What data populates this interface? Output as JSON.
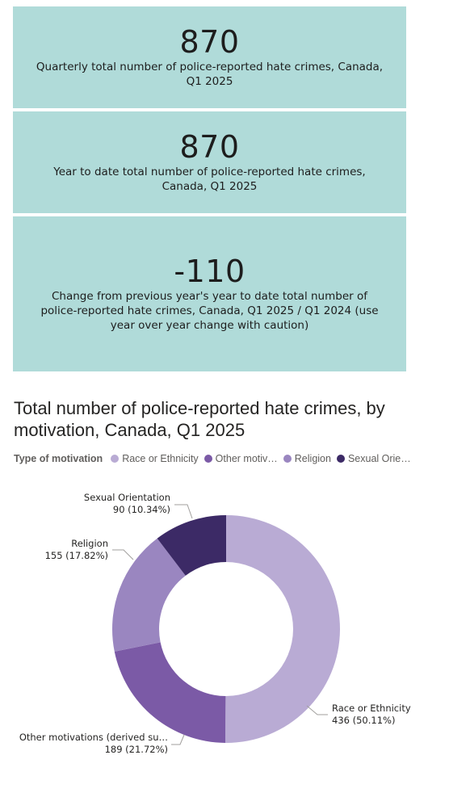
{
  "kpis": [
    {
      "value": "870",
      "label": "Quarterly total number of police-reported hate crimes, Canada, Q1 2025"
    },
    {
      "value": "870",
      "label": "Year to date total number of police-reported hate crimes, Canada, Q1 2025"
    },
    {
      "value": "-110",
      "label": "Change from previous year's year to date total number of police-reported hate crimes, Canada, Q1 2025 / Q1 2024 (use year over year change with caution)"
    }
  ],
  "legend": {
    "title": "Type of motivation",
    "items": [
      {
        "label": "Race or Ethnicity",
        "color": "#b9abd4"
      },
      {
        "label": "Other motiv…",
        "color": "#7b5aa6"
      },
      {
        "label": "Religion",
        "color": "#9a86c0"
      },
      {
        "label": "Sexual Orie…",
        "color": "#3c2a66"
      }
    ]
  },
  "chart_data": {
    "type": "pie",
    "title": "Total number of police-reported hate crimes, by motivation, Canada, Q1 2025",
    "donut": true,
    "categories": [
      "Race or Ethnicity",
      "Other motivations (derived su…",
      "Religion",
      "Sexual Orientation"
    ],
    "values": [
      436,
      189,
      155,
      90
    ],
    "percents": [
      "50.11%",
      "21.72%",
      "17.82%",
      "10.34%"
    ],
    "value_labels": [
      "436 (50.11%)",
      "189 (21.72%)",
      "155 (17.82%)",
      "90 (10.34%)"
    ],
    "colors": [
      "#b9abd4",
      "#7b5aa6",
      "#9a86c0",
      "#3c2a66"
    ],
    "legend_position": "top-left"
  }
}
